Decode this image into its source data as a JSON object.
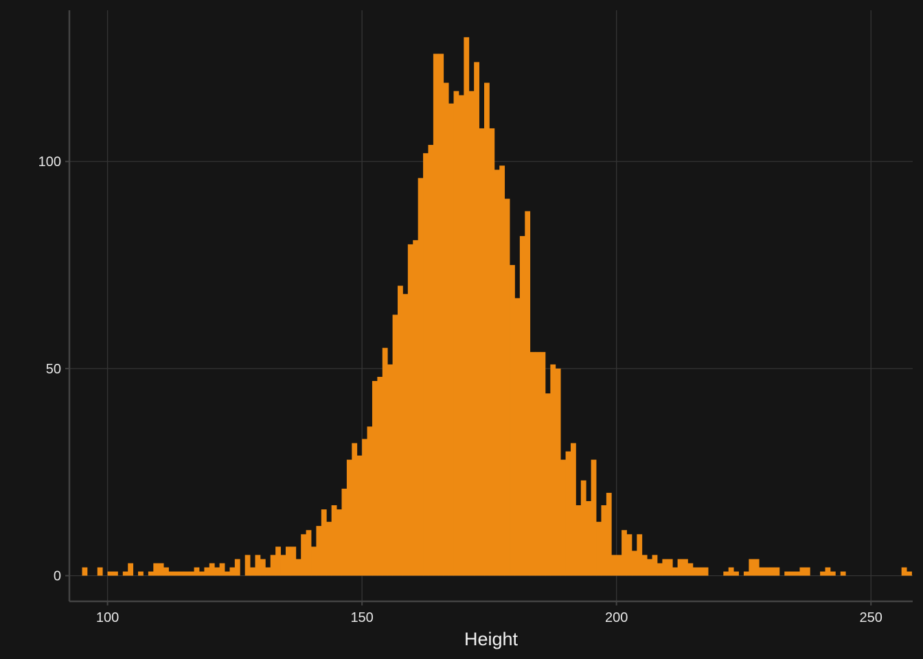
{
  "chart_data": {
    "type": "bar",
    "xlabel": "Height",
    "ylabel": "",
    "xlim": [
      92.5,
      258.2
    ],
    "ylim": [
      -6.2,
      136.5
    ],
    "grid": true,
    "bar_color": "#ee8a12",
    "background": "#151515",
    "grid_color": "#353535",
    "axis_color": "#444444",
    "x_ticks": [
      100,
      150,
      200,
      250
    ],
    "y_ticks": [
      0,
      50,
      100
    ],
    "bin_width": 1,
    "bins": [
      [
        95.5,
        2
      ],
      [
        96.5,
        0
      ],
      [
        97.5,
        0
      ],
      [
        98.5,
        2
      ],
      [
        99.5,
        0
      ],
      [
        100.5,
        1
      ],
      [
        101.5,
        1
      ],
      [
        102.5,
        0
      ],
      [
        103.5,
        1
      ],
      [
        104.5,
        3
      ],
      [
        105.5,
        0
      ],
      [
        106.5,
        1
      ],
      [
        107.5,
        0
      ],
      [
        108.5,
        1
      ],
      [
        109.5,
        3
      ],
      [
        110.5,
        3
      ],
      [
        111.5,
        2
      ],
      [
        112.5,
        1
      ],
      [
        113.5,
        1
      ],
      [
        114.5,
        1
      ],
      [
        115.5,
        1
      ],
      [
        116.5,
        1
      ],
      [
        117.5,
        2
      ],
      [
        118.5,
        1
      ],
      [
        119.5,
        2
      ],
      [
        120.5,
        3
      ],
      [
        121.5,
        2
      ],
      [
        122.5,
        3
      ],
      [
        123.5,
        1
      ],
      [
        124.5,
        2
      ],
      [
        125.5,
        4
      ],
      [
        126.5,
        0
      ],
      [
        127.5,
        5
      ],
      [
        128.5,
        2
      ],
      [
        129.5,
        5
      ],
      [
        130.5,
        4
      ],
      [
        131.5,
        2
      ],
      [
        132.5,
        5
      ],
      [
        133.5,
        7
      ],
      [
        134.5,
        5
      ],
      [
        135.5,
        7
      ],
      [
        136.5,
        7
      ],
      [
        137.5,
        4
      ],
      [
        138.5,
        10
      ],
      [
        139.5,
        11
      ],
      [
        140.5,
        7
      ],
      [
        141.5,
        12
      ],
      [
        142.5,
        16
      ],
      [
        143.5,
        13
      ],
      [
        144.5,
        17
      ],
      [
        145.5,
        16
      ],
      [
        146.5,
        21
      ],
      [
        147.5,
        28
      ],
      [
        148.5,
        32
      ],
      [
        149.5,
        29
      ],
      [
        150.5,
        33
      ],
      [
        151.5,
        36
      ],
      [
        152.5,
        47
      ],
      [
        153.5,
        48
      ],
      [
        154.5,
        55
      ],
      [
        155.5,
        51
      ],
      [
        156.5,
        63
      ],
      [
        157.5,
        70
      ],
      [
        158.5,
        68
      ],
      [
        159.5,
        80
      ],
      [
        160.5,
        81
      ],
      [
        161.5,
        96
      ],
      [
        162.5,
        102
      ],
      [
        163.5,
        104
      ],
      [
        164.5,
        126
      ],
      [
        165.5,
        126
      ],
      [
        166.5,
        119
      ],
      [
        167.5,
        114
      ],
      [
        168.5,
        117
      ],
      [
        169.5,
        116
      ],
      [
        170.5,
        130
      ],
      [
        171.5,
        117
      ],
      [
        172.5,
        124
      ],
      [
        173.5,
        108
      ],
      [
        174.5,
        119
      ],
      [
        175.5,
        108
      ],
      [
        176.5,
        98
      ],
      [
        177.5,
        99
      ],
      [
        178.5,
        91
      ],
      [
        179.5,
        75
      ],
      [
        180.5,
        67
      ],
      [
        181.5,
        82
      ],
      [
        182.5,
        88
      ],
      [
        183.5,
        54
      ],
      [
        184.5,
        54
      ],
      [
        185.5,
        54
      ],
      [
        186.5,
        44
      ],
      [
        187.5,
        51
      ],
      [
        188.5,
        50
      ],
      [
        189.5,
        28
      ],
      [
        190.5,
        30
      ],
      [
        191.5,
        32
      ],
      [
        192.5,
        17
      ],
      [
        193.5,
        23
      ],
      [
        194.5,
        18
      ],
      [
        195.5,
        28
      ],
      [
        196.5,
        13
      ],
      [
        197.5,
        17
      ],
      [
        198.5,
        20
      ],
      [
        199.5,
        5
      ],
      [
        200.5,
        5
      ],
      [
        201.5,
        11
      ],
      [
        202.5,
        10
      ],
      [
        203.5,
        6
      ],
      [
        204.5,
        10
      ],
      [
        205.5,
        5
      ],
      [
        206.5,
        4
      ],
      [
        207.5,
        5
      ],
      [
        208.5,
        3
      ],
      [
        209.5,
        4
      ],
      [
        210.5,
        4
      ],
      [
        211.5,
        2
      ],
      [
        212.5,
        4
      ],
      [
        213.5,
        4
      ],
      [
        214.5,
        3
      ],
      [
        215.5,
        2
      ],
      [
        216.5,
        2
      ],
      [
        217.5,
        2
      ],
      [
        218.5,
        0
      ],
      [
        219.5,
        0
      ],
      [
        220.5,
        0
      ],
      [
        221.5,
        1
      ],
      [
        222.5,
        2
      ],
      [
        223.5,
        1
      ],
      [
        224.5,
        0
      ],
      [
        225.5,
        1
      ],
      [
        226.5,
        4
      ],
      [
        227.5,
        4
      ],
      [
        228.5,
        2
      ],
      [
        229.5,
        2
      ],
      [
        230.5,
        2
      ],
      [
        231.5,
        2
      ],
      [
        232.5,
        0
      ],
      [
        233.5,
        1
      ],
      [
        234.5,
        1
      ],
      [
        235.5,
        1
      ],
      [
        236.5,
        2
      ],
      [
        237.5,
        2
      ],
      [
        238.5,
        0
      ],
      [
        239.5,
        0
      ],
      [
        240.5,
        1
      ],
      [
        241.5,
        2
      ],
      [
        242.5,
        1
      ],
      [
        243.5,
        0
      ],
      [
        244.5,
        1
      ],
      [
        245.5,
        0
      ],
      [
        246.5,
        0
      ],
      [
        247.5,
        0
      ],
      [
        248.5,
        0
      ],
      [
        249.5,
        0
      ],
      [
        250.5,
        0
      ],
      [
        251.5,
        0
      ],
      [
        252.5,
        0
      ],
      [
        253.5,
        0
      ],
      [
        254.5,
        0
      ],
      [
        255.5,
        0
      ],
      [
        256.5,
        2
      ],
      [
        257.5,
        1
      ]
    ]
  }
}
